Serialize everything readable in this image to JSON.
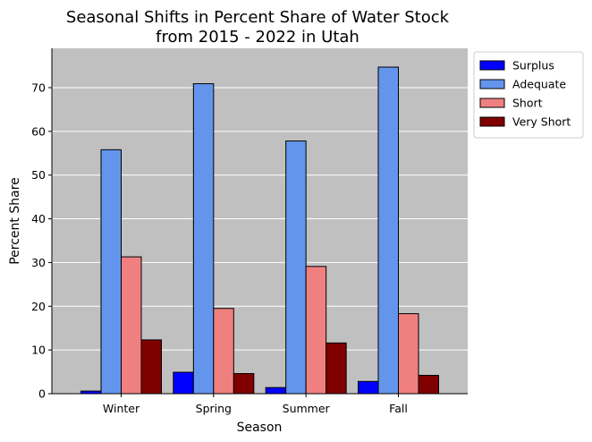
{
  "chart_data": {
    "type": "bar",
    "title_line1": "Seasonal Shifts in Percent Share of Water Stock",
    "title_line2": "from 2015 - 2022 in Utah",
    "xlabel": "Season",
    "ylabel": "Percent Share",
    "categories": [
      "Winter",
      "Spring",
      "Summer",
      "Fall"
    ],
    "ylim": [
      0,
      79
    ],
    "yticks": [
      0,
      10,
      20,
      30,
      40,
      50,
      60,
      70
    ],
    "grid": "horizontal",
    "legend_position": "outside-top-right",
    "plot_background": "#c0c0c0",
    "series": [
      {
        "name": "Surplus",
        "color": "#0000ff",
        "values": [
          0.6,
          4.9,
          1.4,
          2.8
        ]
      },
      {
        "name": "Adequate",
        "color": "#6495ed",
        "values": [
          55.8,
          70.9,
          57.8,
          74.7
        ]
      },
      {
        "name": "Short",
        "color": "#f08080",
        "values": [
          31.3,
          19.5,
          29.1,
          18.3
        ]
      },
      {
        "name": "Very Short",
        "color": "#800000",
        "values": [
          12.3,
          4.6,
          11.6,
          4.2
        ]
      }
    ]
  }
}
